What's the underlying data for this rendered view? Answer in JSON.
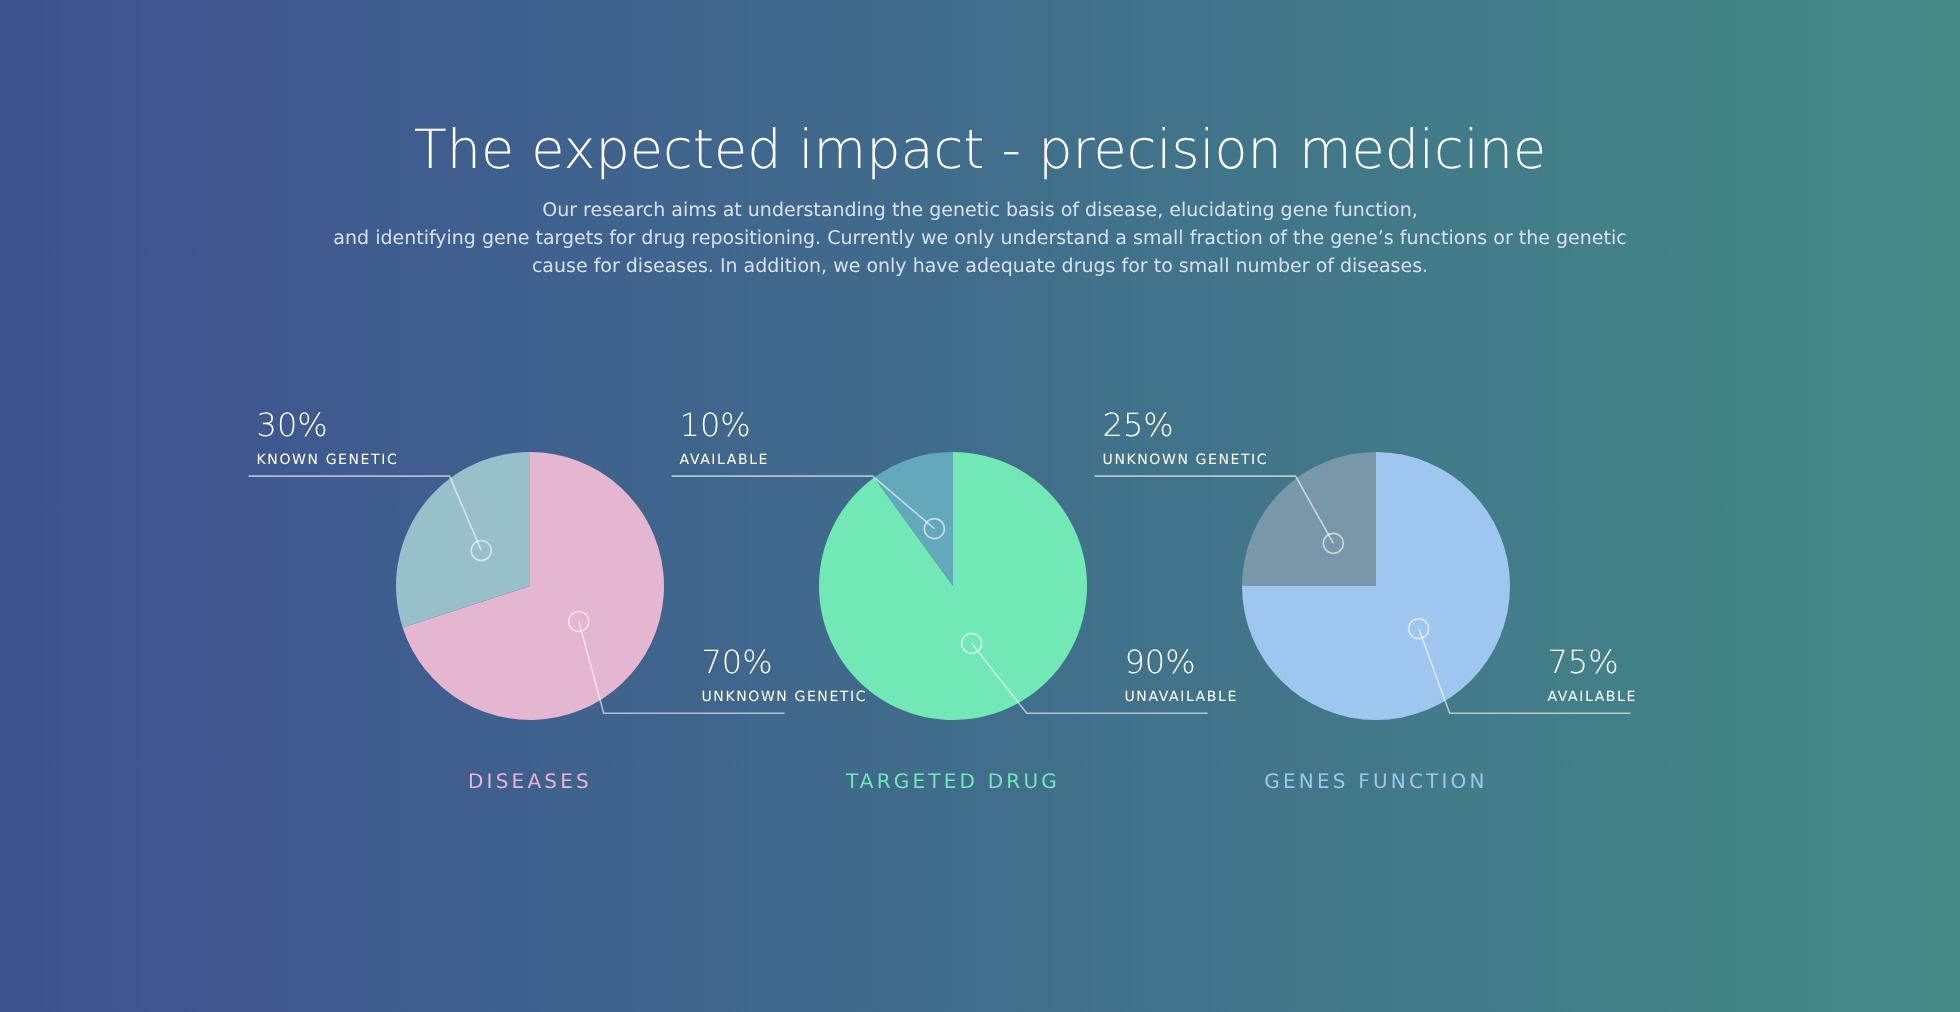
{
  "chart_data": [
    {
      "type": "other",
      "title": "The expected impact - precision medicine",
      "subtitle": "Our research aims at understanding the genetic basis of disease, elucidating gene function,\nand identifying gene targets for drug repositioning. Currently we only understand a small fraction of the gene’s functions or the genetic\ncause for diseases. In addition, we only have adequate drugs for to small number of diseases."
    },
    {
      "type": "pie",
      "title": "DISEASES",
      "categories": [
        "UNKNOWN GENETIC",
        "KNOWN GENETIC"
      ],
      "values": [
        70,
        30
      ],
      "value_labels": [
        "70%",
        "30%"
      ],
      "colors": [
        "#e4b6d0",
        "#98bfca"
      ]
    },
    {
      "type": "pie",
      "title": "TARGETED DRUG",
      "categories": [
        "UNAVAILABLE",
        "AVAILABLE"
      ],
      "values": [
        90,
        10
      ],
      "value_labels": [
        "90%",
        "10%"
      ],
      "colors": [
        "#72e8b6",
        "#64a8bb"
      ]
    },
    {
      "type": "pie",
      "title": "GENES FUNCTION",
      "categories": [
        "AVAILABLE",
        "UNKNOWN GENETIC"
      ],
      "values": [
        75,
        25
      ],
      "value_labels": [
        "75%",
        "25%"
      ],
      "colors": [
        "#9ec6ef",
        "#7897a9"
      ]
    }
  ]
}
